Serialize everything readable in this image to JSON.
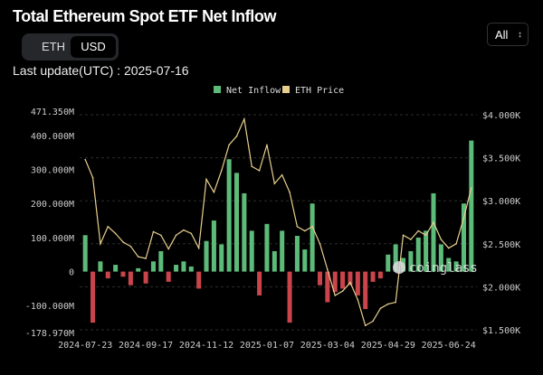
{
  "title": "Total Ethereum Spot ETF Net Inflow",
  "toggle": {
    "options": [
      "ETH",
      "USD"
    ],
    "selected": "USD"
  },
  "last_update": "Last update(UTC) : 2025-07-16",
  "range_select": {
    "value": "All",
    "icon": "up-down-chevron-icon"
  },
  "watermark": "coinglass",
  "colors": {
    "inflow_positive": "#5dbb7a",
    "inflow_negative": "#c9444b",
    "price": "#e8cf8e",
    "background": "#000000"
  },
  "chart_data": {
    "type": "bar+line",
    "legend": [
      {
        "name": "Net Inflow",
        "color": "#5dbb7a"
      },
      {
        "name": "ETH Price",
        "color": "#e8cf8e"
      }
    ],
    "legend_position": "top-center",
    "grid": true,
    "x": [
      "2024-07-23",
      "2024-07-30",
      "2024-08-06",
      "2024-08-13",
      "2024-08-20",
      "2024-08-27",
      "2024-09-03",
      "2024-09-10",
      "2024-09-17",
      "2024-09-24",
      "2024-10-01",
      "2024-10-08",
      "2024-10-15",
      "2024-10-22",
      "2024-10-29",
      "2024-11-05",
      "2024-11-12",
      "2024-11-19",
      "2024-11-26",
      "2024-12-03",
      "2024-12-10",
      "2024-12-17",
      "2024-12-24",
      "2024-12-31",
      "2025-01-07",
      "2025-01-14",
      "2025-01-21",
      "2025-01-28",
      "2025-02-04",
      "2025-02-11",
      "2025-02-18",
      "2025-02-25",
      "2025-03-04",
      "2025-03-11",
      "2025-03-18",
      "2025-03-25",
      "2025-04-01",
      "2025-04-08",
      "2025-04-15",
      "2025-04-22",
      "2025-04-29",
      "2025-05-06",
      "2025-05-13",
      "2025-05-20",
      "2025-05-27",
      "2025-06-03",
      "2025-06-10",
      "2025-06-17",
      "2025-06-24",
      "2025-07-01",
      "2025-07-08",
      "2025-07-15"
    ],
    "x_ticks": [
      "2024-07-23",
      "2024-09-17",
      "2024-11-12",
      "2025-01-07",
      "2025-03-04",
      "2025-04-29",
      "2025-06-24"
    ],
    "series": [
      {
        "name": "Net Inflow",
        "axis": "left",
        "unit": "M USD",
        "values": [
          107,
          -150,
          30,
          -20,
          20,
          -15,
          -40,
          10,
          -35,
          30,
          60,
          -30,
          20,
          30,
          15,
          -50,
          90,
          150,
          80,
          330,
          290,
          230,
          120,
          -70,
          140,
          60,
          120,
          -150,
          105,
          65,
          200,
          -40,
          -90,
          -60,
          -50,
          -40,
          -70,
          -110,
          -30,
          -20,
          50,
          80,
          40,
          60,
          100,
          120,
          230,
          80,
          40,
          30,
          200,
          385
        ]
      },
      {
        "name": "ETH Price",
        "axis": "right",
        "unit": "K USD",
        "values": [
          3.48,
          3.27,
          2.5,
          2.7,
          2.62,
          2.52,
          2.47,
          2.35,
          2.33,
          2.64,
          2.6,
          2.44,
          2.6,
          2.66,
          2.62,
          2.45,
          3.25,
          3.1,
          3.35,
          3.65,
          3.75,
          3.95,
          3.4,
          3.35,
          3.65,
          3.2,
          3.3,
          3.1,
          2.7,
          2.65,
          2.7,
          2.5,
          2.2,
          1.9,
          1.95,
          2.05,
          1.85,
          1.55,
          1.6,
          1.75,
          1.8,
          1.82,
          2.6,
          2.55,
          2.65,
          2.6,
          2.75,
          2.55,
          2.45,
          2.5,
          2.8,
          3.15
        ]
      }
    ],
    "y_left": {
      "ylim": [
        -178.97,
        471.35
      ],
      "ticks": [
        471.35,
        400,
        300,
        200,
        100,
        0,
        -100,
        -178.97
      ],
      "tick_labels": [
        "471.350M",
        "400.000M",
        "300.000M",
        "200.000M",
        "100.000M",
        "0",
        "-100.000M",
        "-178.970M"
      ]
    },
    "y_right": {
      "ylim": [
        1.5,
        4.0
      ],
      "ticks": [
        4.0,
        3.5,
        3.0,
        2.5,
        2.0,
        1.5
      ],
      "tick_labels": [
        "$4.000K",
        "$3.500K",
        "$3.000K",
        "$2.500K",
        "$2.000K",
        "$1.500K"
      ]
    }
  }
}
